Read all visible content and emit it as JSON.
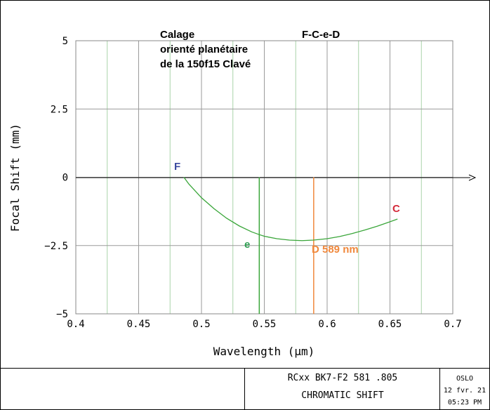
{
  "chart_data": {
    "type": "line",
    "xlabel": "Wavelength (µm)",
    "ylabel": "Focal Shift (mm)",
    "xlim": [
      0.4,
      0.7
    ],
    "ylim": [
      -5,
      5
    ],
    "x_ticks": [
      "0.4",
      "0.45",
      "0.5",
      "0.55",
      "0.6",
      "0.65",
      "0.7"
    ],
    "y_ticks": [
      "5",
      "2.5",
      "0",
      "−2.5",
      "−5"
    ],
    "minor_x_gridlines": [
      0.425,
      0.475,
      0.525,
      0.575,
      0.625,
      0.675
    ],
    "grid": true,
    "series": [
      {
        "color": "#3aa63a",
        "x": [
          0.486,
          0.49,
          0.5,
          0.51,
          0.52,
          0.53,
          0.54,
          0.546,
          0.55,
          0.56,
          0.57,
          0.58,
          0.589,
          0.6,
          0.61,
          0.62,
          0.63,
          0.64,
          0.65,
          0.656
        ],
        "y": [
          0.0,
          -0.25,
          -0.75,
          -1.15,
          -1.5,
          -1.78,
          -2.0,
          -2.1,
          -2.16,
          -2.25,
          -2.3,
          -2.32,
          -2.3,
          -2.25,
          -2.17,
          -2.06,
          -1.93,
          -1.79,
          -1.63,
          -1.53
        ]
      }
    ],
    "markers": [
      {
        "x": 0.546,
        "color": "#3aa63a"
      },
      {
        "x": 0.5893,
        "color": "#f0883c"
      }
    ],
    "annotations": {
      "title_left": "Calage\norienté planétaire\nde la 150f15 Clavé",
      "title_right": "F-C-e-D",
      "label_F": "F",
      "label_C": "C",
      "label_e": "e",
      "label_D": "D 589 nm"
    },
    "colors": {
      "F": "#3b4aa0",
      "C": "#d42a3a",
      "e": "#2f9e52",
      "D": "#f0883c"
    }
  },
  "footer": {
    "line1": "RCxx BK7-F2 581 .805",
    "line2": "CHROMATIC SHIFT",
    "software": "OSLO",
    "date": "12 fvr. 21",
    "time": "05:23 PM"
  }
}
